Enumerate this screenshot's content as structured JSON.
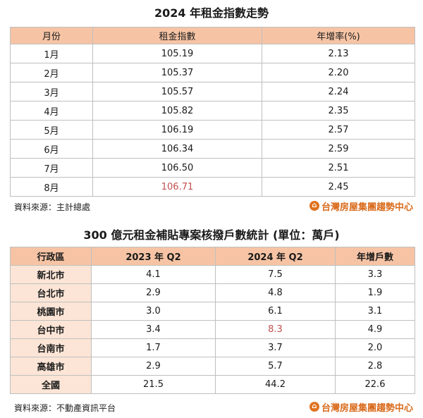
{
  "section1": {
    "title": "2024 年租金指數走勢",
    "headers": [
      "月份",
      "租金指數",
      "年增率(%)"
    ],
    "rows": [
      [
        "1月",
        "105.19",
        "2.13"
      ],
      [
        "2月",
        "105.37",
        "2.20"
      ],
      [
        "3月",
        "105.57",
        "2.24"
      ],
      [
        "4月",
        "105.82",
        "2.35"
      ],
      [
        "5月",
        "106.19",
        "2.57"
      ],
      [
        "6月",
        "106.34",
        "2.59"
      ],
      [
        "7月",
        "106.50",
        "2.51"
      ],
      [
        "8月",
        "106.71",
        "2.45"
      ]
    ],
    "source": "資料來源：主計總處",
    "logo_text": "台灣房屋集團趨勢中心"
  },
  "section2": {
    "title": "300 億元租金補貼專案核撥戶數統計 (單位：萬戶)",
    "headers": [
      "行政區",
      "2023 年 Q2",
      "2024 年 Q2",
      "年增戶數"
    ],
    "rows": [
      [
        "新北市",
        "4.1",
        "7.5",
        "3.3"
      ],
      [
        "台北市",
        "2.9",
        "4.8",
        "1.9"
      ],
      [
        "桃園市",
        "3.0",
        "6.1",
        "3.1"
      ],
      [
        "台中市",
        "3.4",
        "8.3",
        "4.9"
      ],
      [
        "台南市",
        "1.7",
        "3.7",
        "2.0"
      ],
      [
        "高雄市",
        "2.9",
        "5.7",
        "2.8"
      ],
      [
        "全國",
        "21.5",
        "44.2",
        "22.6"
      ]
    ],
    "source": "資料來源：不動產資訊平台",
    "logo_text": "台灣房屋集團趨勢中心"
  },
  "colors": {
    "header_bg": "#f6c4a5",
    "rowhead_bg": "#fce5d6",
    "highlight_text": "#c0504d",
    "logo_color": "#d96b1c"
  },
  "icons": {
    "logo": "house-logo-icon"
  }
}
